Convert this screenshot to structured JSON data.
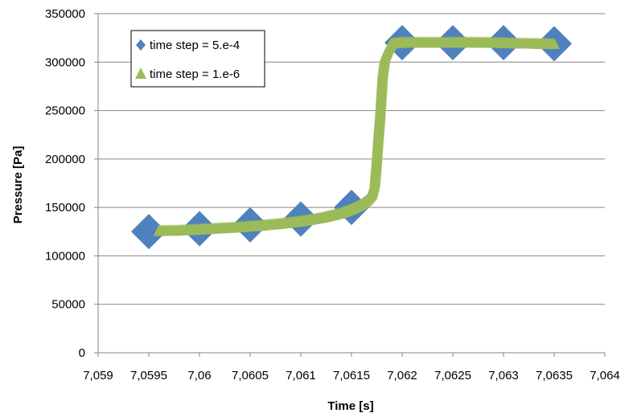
{
  "chart_data": {
    "type": "scatter",
    "xlabel": "Time [s]",
    "ylabel": "Pressure [Pa]",
    "xlim": [
      7.059,
      7.064
    ],
    "ylim": [
      0,
      350000
    ],
    "x_ticks": [
      7.059,
      7.0595,
      7.06,
      7.0605,
      7.061,
      7.0615,
      7.062,
      7.0625,
      7.063,
      7.0635,
      7.064
    ],
    "x_tick_labels": [
      "7,059",
      "7,0595",
      "7,06",
      "7,0605",
      "7,061",
      "7,0615",
      "7,062",
      "7,0625",
      "7,063",
      "7,0635",
      "7,064"
    ],
    "y_ticks": [
      0,
      50000,
      100000,
      150000,
      200000,
      250000,
      300000,
      350000
    ],
    "y_tick_labels": [
      "0",
      "50000",
      "100000",
      "150000",
      "200000",
      "250000",
      "300000",
      "350000"
    ],
    "grid": "horizontal",
    "legend_position": "top-left",
    "series": [
      {
        "name": "time step = 5.e-4",
        "marker": "diamond",
        "color": "#4F81BD",
        "points": [
          [
            7.0595,
            125000
          ],
          [
            7.06,
            128000
          ],
          [
            7.0605,
            132000
          ],
          [
            7.061,
            138000
          ],
          [
            7.0615,
            150000
          ],
          [
            7.062,
            320000
          ],
          [
            7.0625,
            320000
          ],
          [
            7.063,
            320000
          ],
          [
            7.0635,
            319000
          ]
        ]
      },
      {
        "name": "time step = 1.e-6",
        "marker": "triangle",
        "color": "#9BBB59",
        "points": [
          [
            7.0596,
            125500
          ],
          [
            7.0598,
            126000
          ],
          [
            7.06,
            127000
          ],
          [
            7.0602,
            128200
          ],
          [
            7.0604,
            129500
          ],
          [
            7.0606,
            131000
          ],
          [
            7.0608,
            133000
          ],
          [
            7.061,
            135500
          ],
          [
            7.0612,
            139000
          ],
          [
            7.0614,
            144000
          ],
          [
            7.0615,
            148000
          ],
          [
            7.0616,
            153000
          ],
          [
            7.06165,
            157000
          ],
          [
            7.0617,
            163000
          ],
          [
            7.06173,
            175000
          ],
          [
            7.06175,
            200000
          ],
          [
            7.06176,
            215000
          ],
          [
            7.06177,
            230000
          ],
          [
            7.06178,
            242000
          ],
          [
            7.06179,
            258000
          ],
          [
            7.0618,
            275000
          ],
          [
            7.06181,
            290000
          ],
          [
            7.06183,
            305000
          ],
          [
            7.06187,
            315000
          ],
          [
            7.0619,
            319000
          ],
          [
            7.062,
            320000
          ],
          [
            7.0622,
            320000
          ],
          [
            7.0625,
            320000
          ],
          [
            7.0628,
            320000
          ],
          [
            7.063,
            319500
          ],
          [
            7.0632,
            319000
          ],
          [
            7.0635,
            318500
          ]
        ]
      }
    ]
  }
}
